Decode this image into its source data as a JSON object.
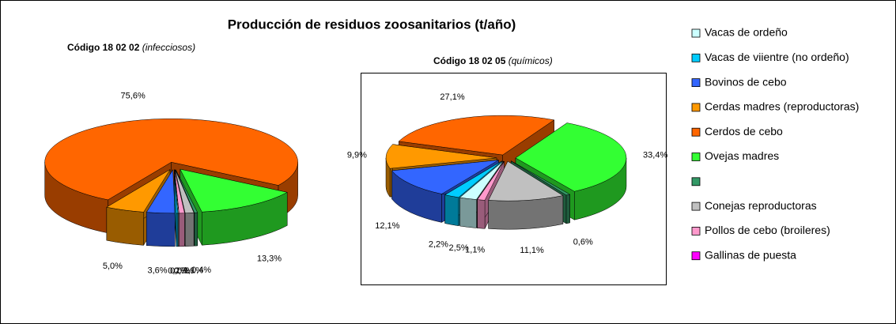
{
  "title": "Producción de residuos zoosanitarios (t/año)",
  "chart_data": [
    {
      "type": "pie3d",
      "subtitle": {
        "code": "Código 18 02 02",
        "kind": "(infecciosos)"
      },
      "categories": [
        "Vacas de ordeño",
        "Vacas de viientre (no ordeño)",
        "Bovinos de cebo",
        "Cerdas madres (reproductoras)",
        "Cerdos de cebo",
        "Ovejas madres",
        null,
        "Conejas reproductoras",
        "Pollos de cebo (broileres)",
        "Gallinas de puesta"
      ],
      "colors": [
        "#ccffff",
        "#00ccff",
        "#3366ff",
        "#ff9900",
        "#ff6600",
        "#33ff33",
        "#339966",
        "#c0c0c0",
        "#ff99cc",
        "#ff00ff"
      ],
      "values": [
        0.1,
        0.2,
        3.6,
        5.0,
        75.6,
        13.3,
        0.4,
        1.1,
        0.7,
        0.0
      ],
      "value_labels": [
        null,
        "0,2%",
        "3,6%",
        "5,0%",
        "75,6%",
        "13,3%",
        "0,4%",
        "1,1%",
        "0,7%",
        "0,0%"
      ]
    },
    {
      "type": "pie3d",
      "subtitle": {
        "code": "Código 18 02 05",
        "kind": "(químicos)"
      },
      "categories": [
        "Vacas de ordeño",
        "Vacas de viientre (no ordeño)",
        "Bovinos de cebo",
        "Cerdas madres (reproductoras)",
        "Cerdos de cebo",
        "Ovejas madres",
        null,
        "Conejas reproductoras",
        "Pollos de cebo (broileres)",
        "Gallinas de puesta"
      ],
      "colors": [
        "#ccffff",
        "#00ccff",
        "#3366ff",
        "#ff9900",
        "#ff6600",
        "#33ff33",
        "#339966",
        "#c0c0c0",
        "#ff99cc",
        "#ff00ff"
      ],
      "values": [
        2.5,
        2.2,
        12.1,
        9.9,
        27.1,
        33.4,
        0.6,
        11.1,
        1.1,
        0.0
      ],
      "value_labels": [
        "2,5%",
        "2,2%",
        "12,1%",
        "9,9%",
        "27,1%",
        "33,4%",
        "0,6%",
        "11,1%",
        "1,1%",
        null
      ]
    }
  ]
}
